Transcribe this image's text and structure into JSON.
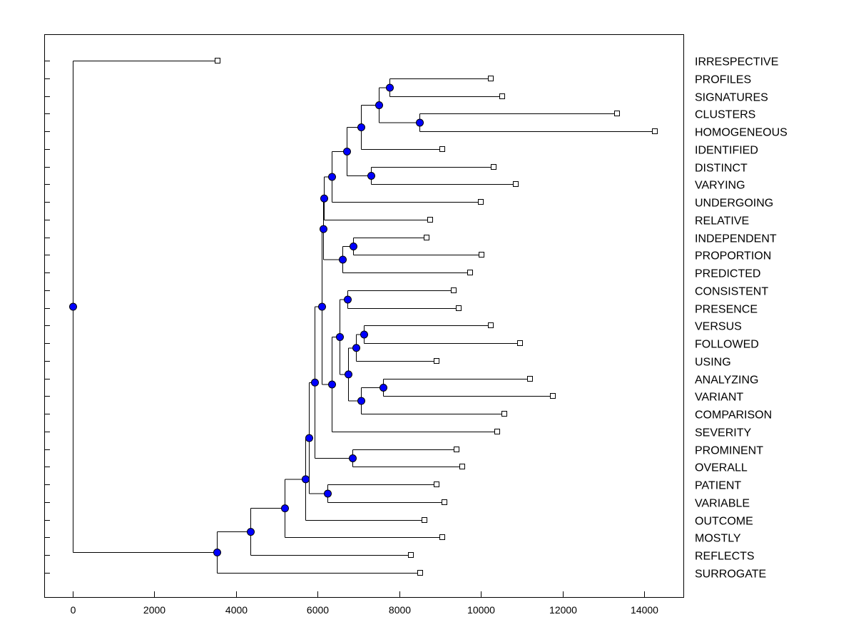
{
  "chart_data": {
    "type": "dendrogram",
    "title": "",
    "xlabel": "",
    "ylabel": "",
    "xlim": [
      -700,
      15000
    ],
    "x_ticks": [
      0,
      2000,
      4000,
      6000,
      8000,
      10000,
      12000,
      14000
    ],
    "grid": false,
    "colors": {
      "node": "#0000ff",
      "leaf": "#ffffff",
      "line": "#000000"
    },
    "leaves": [
      {
        "name": "IRRESPECTIVE",
        "x": 3550
      },
      {
        "name": "PROFILES",
        "x": 10250
      },
      {
        "name": "SIGNATURES",
        "x": 10530
      },
      {
        "name": "CLUSTERS",
        "x": 13330
      },
      {
        "name": "HOMOGENEOUS",
        "x": 14270
      },
      {
        "name": "IDENTIFIED",
        "x": 9060
      },
      {
        "name": "DISTINCT",
        "x": 10310
      },
      {
        "name": "VARYING",
        "x": 10860
      },
      {
        "name": "UNDERGOING",
        "x": 10000
      },
      {
        "name": "RELATIVE",
        "x": 8750
      },
      {
        "name": "INDEPENDENT",
        "x": 8670
      },
      {
        "name": "PROPORTION",
        "x": 10010
      },
      {
        "name": "PREDICTED",
        "x": 9740
      },
      {
        "name": "CONSISTENT",
        "x": 9340
      },
      {
        "name": "PRESENCE",
        "x": 9460
      },
      {
        "name": "VERSUS",
        "x": 10240
      },
      {
        "name": "FOLLOWED",
        "x": 10960
      },
      {
        "name": "USING",
        "x": 8920
      },
      {
        "name": "ANALYZING",
        "x": 11200
      },
      {
        "name": "VARIANT",
        "x": 11760
      },
      {
        "name": "COMPARISON",
        "x": 10570
      },
      {
        "name": "SEVERITY",
        "x": 10400
      },
      {
        "name": "PROMINENT",
        "x": 9400
      },
      {
        "name": "OVERALL",
        "x": 9540
      },
      {
        "name": "PATIENT",
        "x": 8910
      },
      {
        "name": "VARIABLE",
        "x": 9100
      },
      {
        "name": "OUTCOME",
        "x": 8610
      },
      {
        "name": "MOSTLY",
        "x": 9050
      },
      {
        "name": "REFLECTS",
        "x": 8280
      },
      {
        "name": "SURROGATE",
        "x": 8510
      }
    ],
    "merges": [
      {
        "id": "n1",
        "x": 7760,
        "children": [
          "PROFILES",
          "SIGNATURES"
        ]
      },
      {
        "id": "n2",
        "x": 8500,
        "children": [
          "CLUSTERS",
          "HOMOGENEOUS"
        ]
      },
      {
        "id": "n3",
        "x": 7500,
        "children": [
          "n1",
          "n2"
        ]
      },
      {
        "id": "n4",
        "x": 7060,
        "children": [
          "n3",
          "IDENTIFIED"
        ]
      },
      {
        "id": "n5",
        "x": 7300,
        "children": [
          "DISTINCT",
          "VARYING"
        ]
      },
      {
        "id": "n6",
        "x": 6710,
        "children": [
          "n4",
          "n5"
        ]
      },
      {
        "id": "n7",
        "x": 6350,
        "children": [
          "n6",
          "UNDERGOING"
        ]
      },
      {
        "id": "n8",
        "x": 6160,
        "children": [
          "n7",
          "RELATIVE"
        ]
      },
      {
        "id": "n9",
        "x": 6870,
        "children": [
          "INDEPENDENT",
          "PROPORTION"
        ]
      },
      {
        "id": "n10",
        "x": 6610,
        "children": [
          "n9",
          "PREDICTED"
        ]
      },
      {
        "id": "n11",
        "x": 6140,
        "children": [
          "n8",
          "n10"
        ]
      },
      {
        "id": "n12",
        "x": 6730,
        "children": [
          "CONSISTENT",
          "PRESENCE"
        ]
      },
      {
        "id": "n13",
        "x": 7130,
        "children": [
          "VERSUS",
          "FOLLOWED"
        ]
      },
      {
        "id": "n14",
        "x": 6940,
        "children": [
          "n13",
          "USING"
        ]
      },
      {
        "id": "n15",
        "x": 7600,
        "children": [
          "ANALYZING",
          "VARIANT"
        ]
      },
      {
        "id": "n16",
        "x": 7060,
        "children": [
          "n15",
          "COMPARISON"
        ]
      },
      {
        "id": "n17",
        "x": 6740,
        "children": [
          "n14",
          "n16"
        ]
      },
      {
        "id": "n18",
        "x": 6540,
        "children": [
          "n12",
          "n17"
        ]
      },
      {
        "id": "n19",
        "x": 6340,
        "children": [
          "n18",
          "SEVERITY"
        ]
      },
      {
        "id": "n20",
        "x": 6100,
        "children": [
          "n11",
          "n19"
        ]
      },
      {
        "id": "n21",
        "x": 6860,
        "children": [
          "PROMINENT",
          "OVERALL"
        ]
      },
      {
        "id": "n22",
        "x": 5930,
        "children": [
          "n20",
          "n21"
        ]
      },
      {
        "id": "n23",
        "x": 6240,
        "children": [
          "PATIENT",
          "VARIABLE"
        ]
      },
      {
        "id": "n24",
        "x": 5780,
        "children": [
          "n22",
          "n23"
        ]
      },
      {
        "id": "n25",
        "x": 5690,
        "children": [
          "n24",
          "OUTCOME"
        ]
      },
      {
        "id": "n26",
        "x": 5190,
        "children": [
          "n25",
          "MOSTLY"
        ]
      },
      {
        "id": "n27",
        "x": 4350,
        "children": [
          "n26",
          "REFLECTS"
        ]
      },
      {
        "id": "n28",
        "x": 3530,
        "children": [
          "n27",
          "SURROGATE"
        ]
      },
      {
        "id": "n29",
        "x": 0,
        "children": [
          "IRRESPECTIVE",
          "n28"
        ]
      }
    ]
  }
}
